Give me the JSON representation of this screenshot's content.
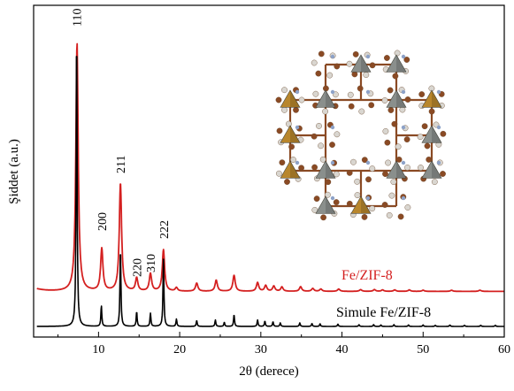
{
  "chart_data": {
    "type": "line",
    "xlabel": "2θ (derece)",
    "ylabel": "Şiddet (a.u.)",
    "xlim": [
      2,
      60
    ],
    "xticks": [
      10,
      20,
      30,
      40,
      50,
      60
    ],
    "grid": false,
    "legend": "inline labels at right",
    "y_units": "arbitrary",
    "series": [
      {
        "name": "Fe/ZIF-8",
        "color": "#d42020",
        "baseline": 0.12,
        "peaks": [
          [
            7.35,
            0.85
          ],
          [
            10.4,
            0.145
          ],
          [
            12.7,
            0.37
          ],
          [
            14.7,
            0.045
          ],
          [
            16.4,
            0.06
          ],
          [
            18.0,
            0.142
          ],
          [
            19.6,
            0.012
          ],
          [
            22.1,
            0.028
          ],
          [
            24.5,
            0.038
          ],
          [
            26.7,
            0.055
          ],
          [
            29.6,
            0.03
          ],
          [
            30.6,
            0.02
          ],
          [
            31.6,
            0.018
          ],
          [
            32.6,
            0.015
          ],
          [
            34.9,
            0.016
          ],
          [
            36.4,
            0.01
          ],
          [
            37.4,
            0.008
          ],
          [
            39.6,
            0.008
          ],
          [
            42.3,
            0.006
          ],
          [
            44.0,
            0.006
          ],
          [
            45.0,
            0.005
          ],
          [
            46.5,
            0.005
          ],
          [
            48.3,
            0.005
          ],
          [
            50.0,
            0.004
          ],
          [
            53.5,
            0.004
          ],
          [
            57.0,
            0.004
          ]
        ]
      },
      {
        "name": "Simule Fe/ZIF-8",
        "color": "#000000",
        "baseline": 0.0,
        "peaks": [
          [
            7.3,
            1.0
          ],
          [
            10.35,
            0.07
          ],
          [
            12.7,
            0.265
          ],
          [
            14.7,
            0.05
          ],
          [
            16.4,
            0.045
          ],
          [
            18.0,
            0.23
          ],
          [
            19.6,
            0.025
          ],
          [
            22.1,
            0.02
          ],
          [
            24.4,
            0.022
          ],
          [
            25.5,
            0.014
          ],
          [
            26.7,
            0.04
          ],
          [
            29.6,
            0.022
          ],
          [
            30.5,
            0.018
          ],
          [
            31.5,
            0.016
          ],
          [
            32.4,
            0.012
          ],
          [
            34.8,
            0.012
          ],
          [
            36.3,
            0.01
          ],
          [
            37.3,
            0.009
          ],
          [
            39.5,
            0.008
          ],
          [
            42.1,
            0.006
          ],
          [
            43.9,
            0.006
          ],
          [
            44.8,
            0.005
          ],
          [
            46.4,
            0.006
          ],
          [
            48.2,
            0.005
          ],
          [
            50.0,
            0.005
          ],
          [
            51.5,
            0.004
          ],
          [
            53.3,
            0.005
          ],
          [
            55.1,
            0.004
          ],
          [
            57.1,
            0.004
          ],
          [
            58.9,
            0.004
          ]
        ]
      }
    ],
    "annotations": [
      {
        "text": "110",
        "x": 7.3
      },
      {
        "text": "200",
        "x": 10.4
      },
      {
        "text": "211",
        "x": 12.7
      },
      {
        "text": "220",
        "x": 14.7
      },
      {
        "text": "310",
        "x": 16.4
      },
      {
        "text": "222",
        "x": 18.0
      }
    ],
    "series_labels": [
      "Fe/ZIF-8",
      "Simule Fe/ZIF-8"
    ]
  },
  "inset": {
    "kind": "crystal-structure",
    "colors": {
      "gold": "#b8862c",
      "gray": "#8a8f8c",
      "brown": "#8a4a24",
      "light": "#d9d6d0",
      "blue": "#8da2c8"
    }
  }
}
